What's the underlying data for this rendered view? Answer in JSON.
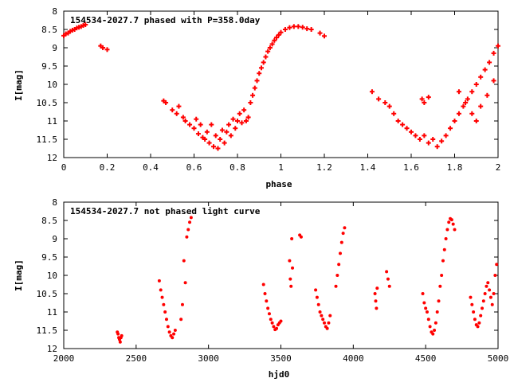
{
  "chart_data": [
    {
      "type": "scatter",
      "title": "154534-2027.7 phased with P=358.0day",
      "xlabel": "phase",
      "ylabel": "I[mag]",
      "xlim": [
        0,
        2
      ],
      "ylim": [
        12,
        8
      ],
      "y_inverted": true,
      "x_ticks": [
        "0",
        "0.2",
        "0.4",
        "0.6",
        "0.8",
        "1",
        "1.2",
        "1.4",
        "1.6",
        "1.8",
        "2"
      ],
      "x_tick_values": [
        0,
        0.2,
        0.4,
        0.6,
        0.8,
        1,
        1.2,
        1.4,
        1.6,
        1.8,
        2
      ],
      "y_ticks": [
        "8",
        "8.5",
        "9",
        "9.5",
        "10",
        "10.5",
        "11",
        "11.5",
        "12"
      ],
      "y_tick_values": [
        8,
        8.5,
        9,
        9.5,
        10,
        10.5,
        11,
        11.5,
        12
      ],
      "marker_color": "#ff0000",
      "marker": "plus",
      "points": [
        [
          0.0,
          8.67
        ],
        [
          0.01,
          8.62
        ],
        [
          0.02,
          8.6
        ],
        [
          0.03,
          8.55
        ],
        [
          0.04,
          8.52
        ],
        [
          0.05,
          8.5
        ],
        [
          0.06,
          8.46
        ],
        [
          0.07,
          8.44
        ],
        [
          0.08,
          8.42
        ],
        [
          0.09,
          8.39
        ],
        [
          0.1,
          8.37
        ],
        [
          0.17,
          8.95
        ],
        [
          0.18,
          9.0
        ],
        [
          0.2,
          9.05
        ],
        [
          0.46,
          10.45
        ],
        [
          0.47,
          10.5
        ],
        [
          0.5,
          10.7
        ],
        [
          0.52,
          10.8
        ],
        [
          0.53,
          10.6
        ],
        [
          0.55,
          10.9
        ],
        [
          0.56,
          11.0
        ],
        [
          0.58,
          11.1
        ],
        [
          0.6,
          11.2
        ],
        [
          0.61,
          10.95
        ],
        [
          0.62,
          11.35
        ],
        [
          0.63,
          11.1
        ],
        [
          0.64,
          11.45
        ],
        [
          0.65,
          11.5
        ],
        [
          0.66,
          11.3
        ],
        [
          0.67,
          11.6
        ],
        [
          0.68,
          11.1
        ],
        [
          0.69,
          11.7
        ],
        [
          0.7,
          11.4
        ],
        [
          0.71,
          11.75
        ],
        [
          0.72,
          11.5
        ],
        [
          0.73,
          11.25
        ],
        [
          0.74,
          11.6
        ],
        [
          0.75,
          11.3
        ],
        [
          0.76,
          11.1
        ],
        [
          0.77,
          11.4
        ],
        [
          0.78,
          10.95
        ],
        [
          0.79,
          11.2
        ],
        [
          0.8,
          11.0
        ],
        [
          0.81,
          10.8
        ],
        [
          0.82,
          11.05
        ],
        [
          0.83,
          10.7
        ],
        [
          0.84,
          11.0
        ],
        [
          0.85,
          10.9
        ],
        [
          0.86,
          10.5
        ],
        [
          0.87,
          10.3
        ],
        [
          0.88,
          10.1
        ],
        [
          0.89,
          9.9
        ],
        [
          0.9,
          9.7
        ],
        [
          0.91,
          9.55
        ],
        [
          0.92,
          9.4
        ],
        [
          0.93,
          9.25
        ],
        [
          0.94,
          9.1
        ],
        [
          0.95,
          9.0
        ],
        [
          0.96,
          8.9
        ],
        [
          0.97,
          8.8
        ],
        [
          0.98,
          8.72
        ],
        [
          0.99,
          8.65
        ],
        [
          1.0,
          8.58
        ],
        [
          1.02,
          8.5
        ],
        [
          1.04,
          8.45
        ],
        [
          1.06,
          8.42
        ],
        [
          1.08,
          8.42
        ],
        [
          1.1,
          8.44
        ],
        [
          1.12,
          8.48
        ],
        [
          1.14,
          8.5
        ],
        [
          1.18,
          8.6
        ],
        [
          1.2,
          8.68
        ],
        [
          1.42,
          10.2
        ],
        [
          1.45,
          10.4
        ],
        [
          1.48,
          10.5
        ],
        [
          1.5,
          10.6
        ],
        [
          1.52,
          10.8
        ],
        [
          1.54,
          11.0
        ],
        [
          1.56,
          11.1
        ],
        [
          1.58,
          11.2
        ],
        [
          1.6,
          11.3
        ],
        [
          1.62,
          11.4
        ],
        [
          1.64,
          11.5
        ],
        [
          1.66,
          11.4
        ],
        [
          1.68,
          11.6
        ],
        [
          1.7,
          11.5
        ],
        [
          1.72,
          11.7
        ],
        [
          1.74,
          11.55
        ],
        [
          1.65,
          10.4
        ],
        [
          1.66,
          10.5
        ],
        [
          1.68,
          10.35
        ],
        [
          1.76,
          11.4
        ],
        [
          1.78,
          11.2
        ],
        [
          1.8,
          11.0
        ],
        [
          1.82,
          10.8
        ],
        [
          1.84,
          10.6
        ],
        [
          1.86,
          10.4
        ],
        [
          1.88,
          10.2
        ],
        [
          1.9,
          10.0
        ],
        [
          1.92,
          9.8
        ],
        [
          1.94,
          9.6
        ],
        [
          1.96,
          9.4
        ],
        [
          1.98,
          9.15
        ],
        [
          2.0,
          8.95
        ],
        [
          1.82,
          10.2
        ],
        [
          1.85,
          10.5
        ],
        [
          1.88,
          10.8
        ],
        [
          1.9,
          11.0
        ],
        [
          1.92,
          10.6
        ],
        [
          1.95,
          10.3
        ],
        [
          1.98,
          9.9
        ]
      ]
    },
    {
      "type": "scatter",
      "title": "154534-2027.7 not phased light curve",
      "xlabel": "hjd0",
      "ylabel": "I[mag]",
      "xlim": [
        2000,
        5000
      ],
      "ylim": [
        12,
        8
      ],
      "y_inverted": true,
      "x_ticks": [
        "2000",
        "2500",
        "3000",
        "3500",
        "4000",
        "4500",
        "5000"
      ],
      "x_tick_values": [
        2000,
        2500,
        3000,
        3500,
        4000,
        4500,
        5000
      ],
      "y_ticks": [
        "8",
        "8.5",
        "9",
        "9.5",
        "10",
        "10.5",
        "11",
        "11.5",
        "12"
      ],
      "y_tick_values": [
        8,
        8.5,
        9,
        9.5,
        10,
        10.5,
        11,
        11.5,
        12
      ],
      "marker_color": "#ff0000",
      "marker": "dot",
      "points": [
        [
          2370,
          11.55
        ],
        [
          2375,
          11.6
        ],
        [
          2380,
          11.7
        ],
        [
          2385,
          11.75
        ],
        [
          2390,
          11.82
        ],
        [
          2395,
          11.7
        ],
        [
          2400,
          11.65
        ],
        [
          2660,
          10.15
        ],
        [
          2670,
          10.4
        ],
        [
          2680,
          10.6
        ],
        [
          2690,
          10.8
        ],
        [
          2700,
          11.0
        ],
        [
          2710,
          11.2
        ],
        [
          2720,
          11.4
        ],
        [
          2730,
          11.55
        ],
        [
          2740,
          11.65
        ],
        [
          2750,
          11.7
        ],
        [
          2760,
          11.6
        ],
        [
          2770,
          11.5
        ],
        [
          2810,
          11.2
        ],
        [
          2820,
          10.8
        ],
        [
          2830,
          9.6
        ],
        [
          2840,
          10.2
        ],
        [
          2850,
          8.95
        ],
        [
          2860,
          8.75
        ],
        [
          2870,
          8.55
        ],
        [
          2880,
          8.42
        ],
        [
          3380,
          10.25
        ],
        [
          3390,
          10.5
        ],
        [
          3400,
          10.7
        ],
        [
          3410,
          10.9
        ],
        [
          3420,
          11.05
        ],
        [
          3430,
          11.2
        ],
        [
          3440,
          11.3
        ],
        [
          3450,
          11.4
        ],
        [
          3460,
          11.48
        ],
        [
          3470,
          11.45
        ],
        [
          3480,
          11.35
        ],
        [
          3490,
          11.3
        ],
        [
          3500,
          11.25
        ],
        [
          3560,
          9.6
        ],
        [
          3565,
          10.1
        ],
        [
          3570,
          10.3
        ],
        [
          3575,
          9.0
        ],
        [
          3580,
          9.8
        ],
        [
          3630,
          8.9
        ],
        [
          3640,
          8.95
        ],
        [
          3740,
          10.4
        ],
        [
          3750,
          10.6
        ],
        [
          3760,
          10.8
        ],
        [
          3770,
          11.0
        ],
        [
          3780,
          11.1
        ],
        [
          3790,
          11.2
        ],
        [
          3800,
          11.3
        ],
        [
          3810,
          11.4
        ],
        [
          3820,
          11.45
        ],
        [
          3830,
          11.3
        ],
        [
          3840,
          11.1
        ],
        [
          3880,
          10.3
        ],
        [
          3890,
          10.0
        ],
        [
          3900,
          9.7
        ],
        [
          3910,
          9.4
        ],
        [
          3920,
          9.1
        ],
        [
          3930,
          8.85
        ],
        [
          3940,
          8.7
        ],
        [
          4150,
          10.5
        ],
        [
          4155,
          10.7
        ],
        [
          4160,
          10.9
        ],
        [
          4165,
          10.35
        ],
        [
          4230,
          9.9
        ],
        [
          4240,
          10.1
        ],
        [
          4250,
          10.3
        ],
        [
          4480,
          10.5
        ],
        [
          4490,
          10.75
        ],
        [
          4500,
          10.9
        ],
        [
          4510,
          11.0
        ],
        [
          4520,
          11.2
        ],
        [
          4530,
          11.4
        ],
        [
          4540,
          11.55
        ],
        [
          4550,
          11.6
        ],
        [
          4560,
          11.5
        ],
        [
          4570,
          11.3
        ],
        [
          4580,
          11.0
        ],
        [
          4590,
          10.7
        ],
        [
          4600,
          10.3
        ],
        [
          4610,
          10.0
        ],
        [
          4620,
          9.6
        ],
        [
          4630,
          9.3
        ],
        [
          4640,
          9.0
        ],
        [
          4650,
          8.75
        ],
        [
          4660,
          8.55
        ],
        [
          4670,
          8.45
        ],
        [
          4680,
          8.48
        ],
        [
          4690,
          8.6
        ],
        [
          4700,
          8.75
        ],
        [
          4810,
          10.6
        ],
        [
          4820,
          10.8
        ],
        [
          4830,
          11.0
        ],
        [
          4840,
          11.2
        ],
        [
          4850,
          11.35
        ],
        [
          4860,
          11.4
        ],
        [
          4870,
          11.3
        ],
        [
          4880,
          11.1
        ],
        [
          4890,
          10.9
        ],
        [
          4900,
          10.7
        ],
        [
          4910,
          10.5
        ],
        [
          4920,
          10.3
        ],
        [
          4930,
          10.2
        ],
        [
          4940,
          10.4
        ],
        [
          4950,
          10.6
        ],
        [
          4960,
          10.8
        ],
        [
          4970,
          10.5
        ],
        [
          4980,
          10.0
        ],
        [
          4990,
          9.7
        ]
      ]
    }
  ]
}
